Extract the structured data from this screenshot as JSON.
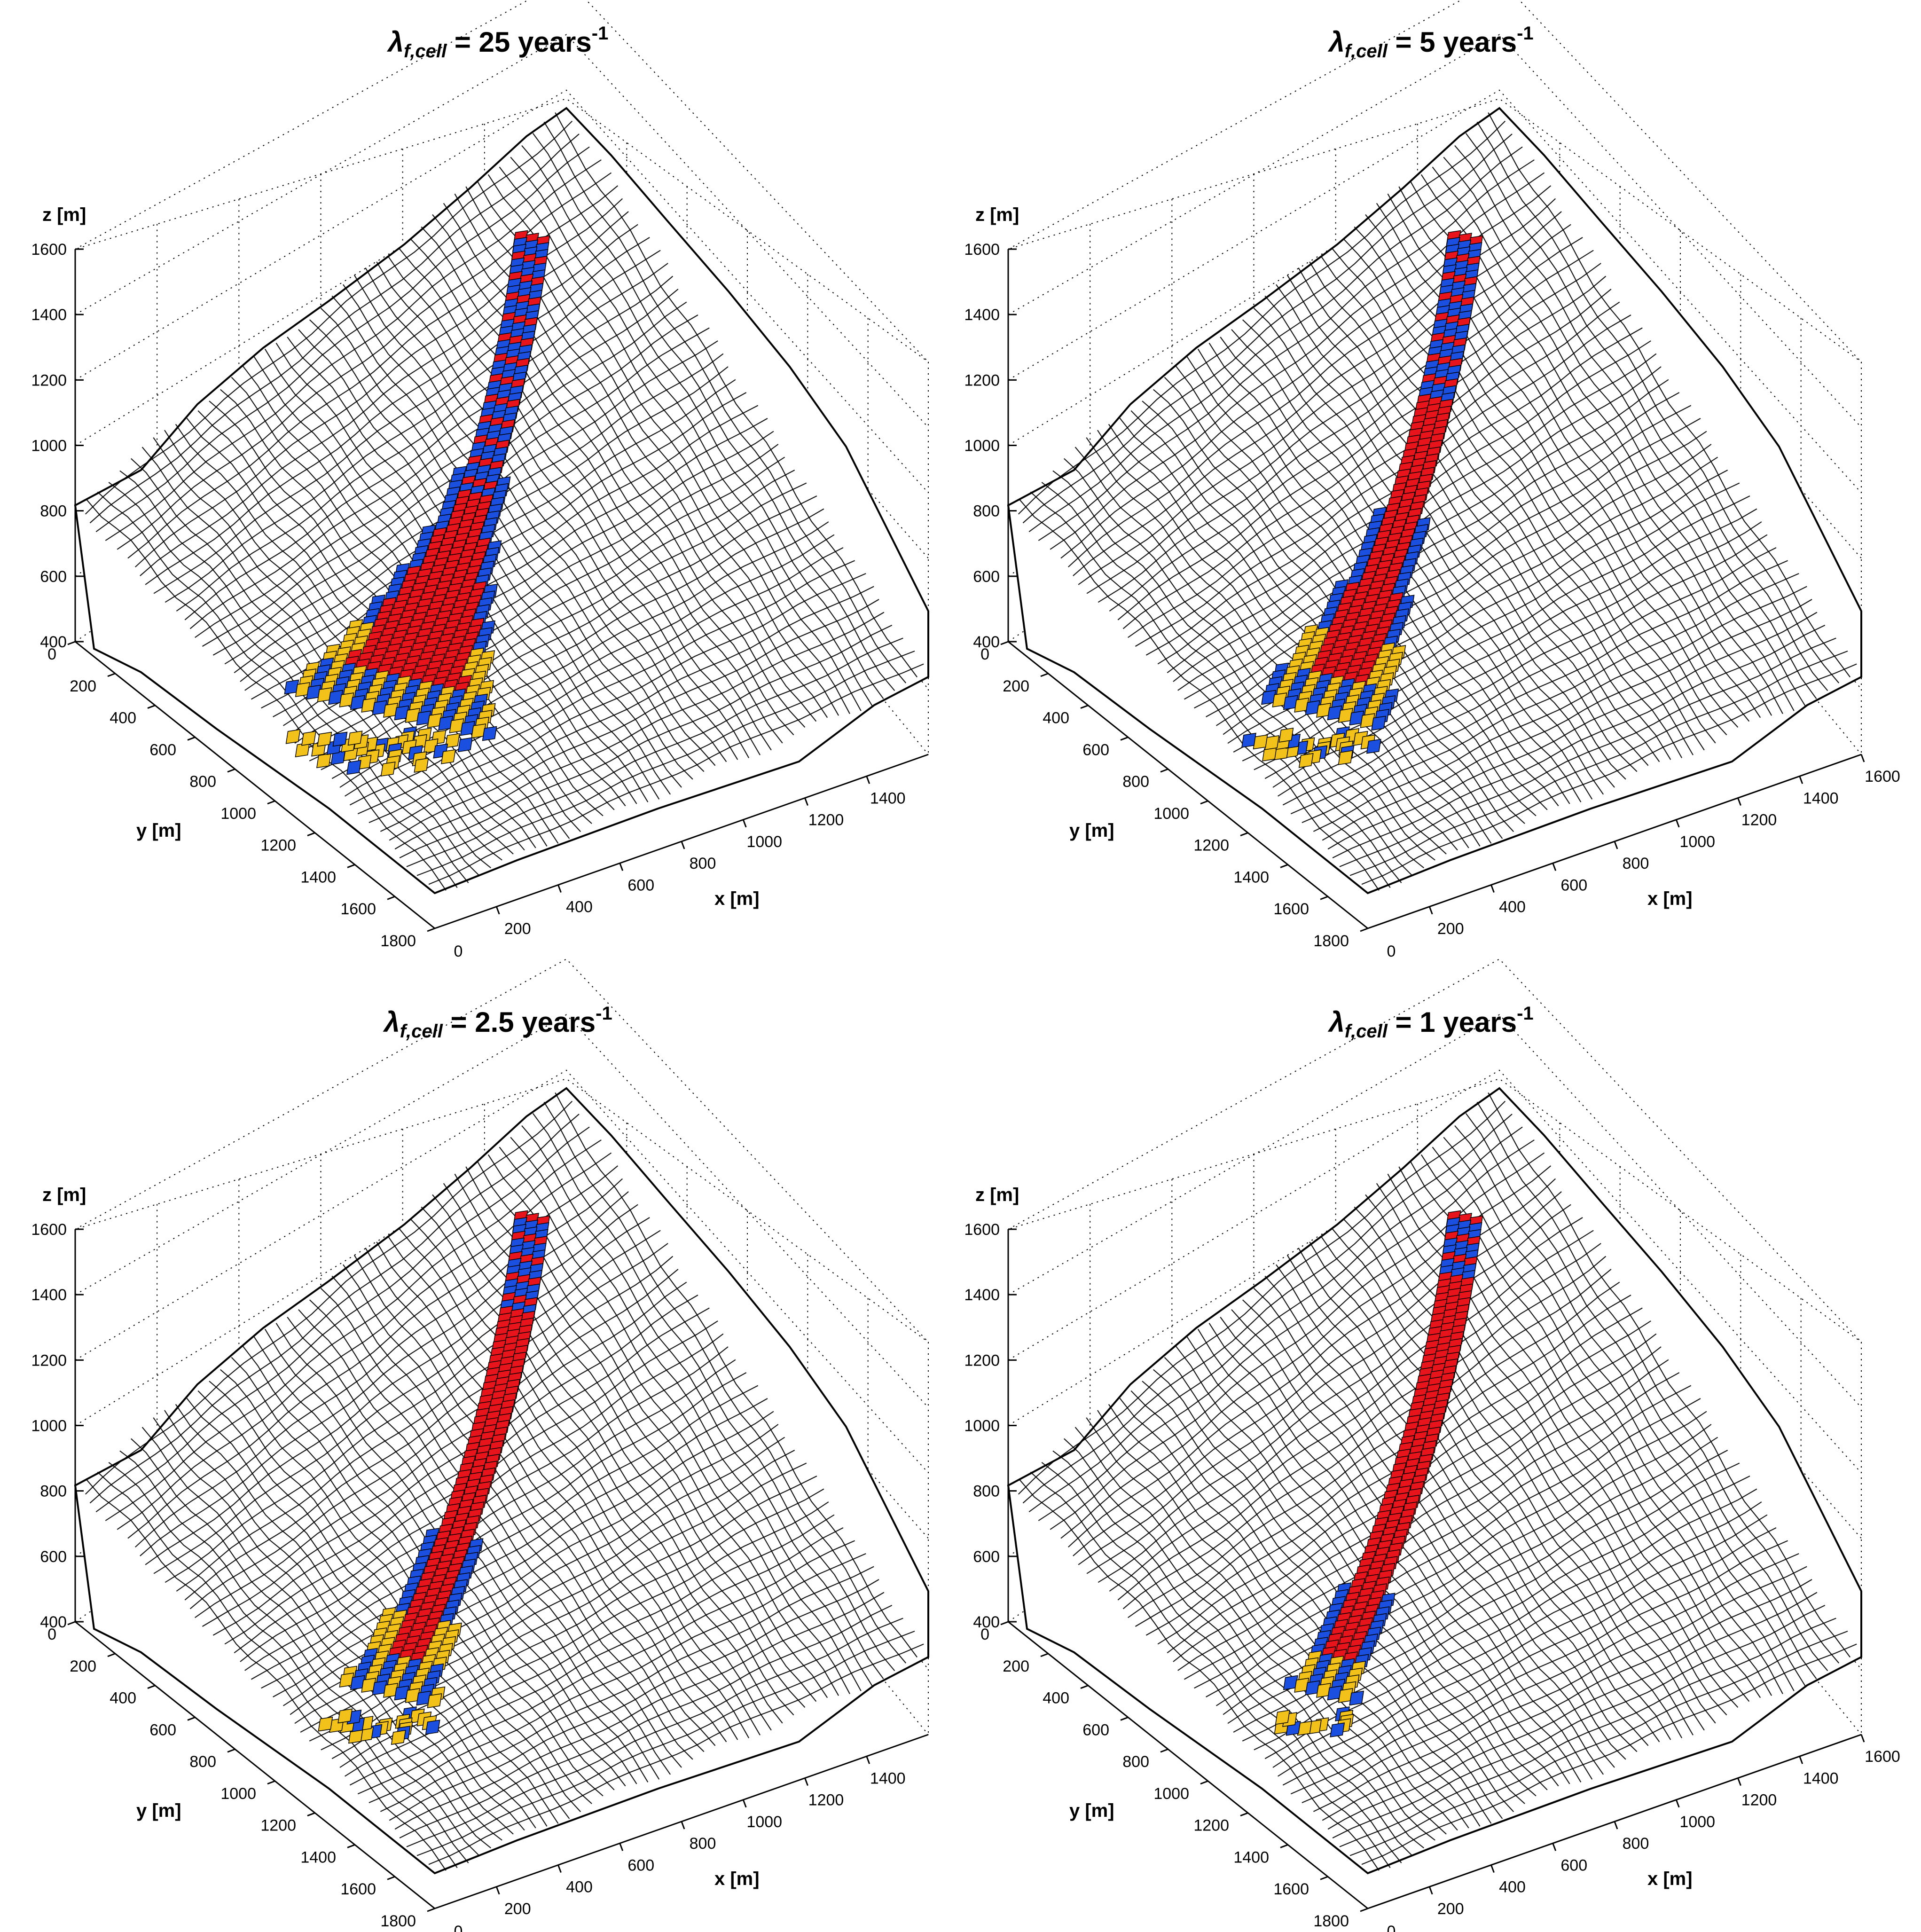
{
  "chart_data": [
    {
      "type": "surface3d",
      "title": {
        "prefix": "λ",
        "sub": "f,cell",
        "suffix": " = 25 years",
        "sup": "-1"
      },
      "xlabel": "x [m]",
      "ylabel": "y [m]",
      "zlabel": "z [m]",
      "xticks": [
        "200",
        "400",
        "600",
        "800",
        "1000",
        "1200",
        "1400"
      ],
      "yticks": [
        "0",
        "200",
        "400",
        "600",
        "800",
        "1000",
        "1200",
        "1400",
        "1600",
        "1800"
      ],
      "zticks": [
        "400",
        "600",
        "800",
        "1000",
        "1200",
        "1400",
        "1600"
      ],
      "xlim": [
        0,
        1600
      ],
      "ylim": [
        0,
        1800
      ],
      "zlim": [
        400,
        1600
      ],
      "origin_label": "0",
      "colors": {
        "red": "#e8141b",
        "blue": "#1a4fe0",
        "yellow": "#f2c21b"
      },
      "track_extent": 0.55,
      "widening": 1.0,
      "fan_extent": 1.0
    },
    {
      "type": "surface3d",
      "title": {
        "prefix": "λ",
        "sub": "f,cell",
        "suffix": " = 5 years",
        "sup": "-1"
      },
      "xlabel": "x [m]",
      "ylabel": "y [m]",
      "zlabel": "z [m]",
      "xticks": [
        "200",
        "400",
        "600",
        "800",
        "1000",
        "1200",
        "1400",
        "1600"
      ],
      "yticks": [
        "0",
        "200",
        "400",
        "600",
        "800",
        "1000",
        "1200",
        "1400",
        "1600",
        "1800"
      ],
      "zticks": [
        "400",
        "600",
        "800",
        "1000",
        "1200",
        "1400",
        "1600"
      ],
      "xlim": [
        0,
        1600
      ],
      "ylim": [
        0,
        1800
      ],
      "zlim": [
        400,
        1600
      ],
      "origin_label": "0",
      "colors": {
        "red": "#e8141b",
        "blue": "#1a4fe0",
        "yellow": "#f2c21b"
      },
      "track_extent": 0.35,
      "widening": 0.6,
      "fan_extent": 0.65
    },
    {
      "type": "surface3d",
      "title": {
        "prefix": "λ",
        "sub": "f,cell",
        "suffix": " = 2.5 years",
        "sup": "-1"
      },
      "xlabel": "x [m]",
      "ylabel": "y [m]",
      "zlabel": "z [m]",
      "xticks": [
        "200",
        "400",
        "600",
        "800",
        "1000",
        "1200",
        "1400"
      ],
      "yticks": [
        "0",
        "200",
        "400",
        "600",
        "800",
        "1000",
        "1200",
        "1400",
        "1600",
        "1800"
      ],
      "zticks": [
        "400",
        "600",
        "800",
        "1000",
        "1200",
        "1400",
        "1600"
      ],
      "xlim": [
        0,
        1600
      ],
      "ylim": [
        0,
        1800
      ],
      "zlim": [
        400,
        1600
      ],
      "origin_label": "0",
      "colors": {
        "red": "#e8141b",
        "blue": "#1a4fe0",
        "yellow": "#f2c21b"
      },
      "track_extent": 0.2,
      "widening": 0.4,
      "fan_extent": 0.55
    },
    {
      "type": "surface3d",
      "title": {
        "prefix": "λ",
        "sub": "f,cell",
        "suffix": " = 1 years",
        "sup": "-1"
      },
      "xlabel": "x [m]",
      "ylabel": "y [m]",
      "zlabel": "z [m]",
      "xticks": [
        "200",
        "400",
        "600",
        "800",
        "1000",
        "1200",
        "1400",
        "1600"
      ],
      "yticks": [
        "0",
        "200",
        "400",
        "600",
        "800",
        "1000",
        "1200",
        "1400",
        "1600",
        "1800"
      ],
      "zticks": [
        "400",
        "600",
        "800",
        "1000",
        "1200",
        "1400",
        "1600"
      ],
      "xlim": [
        0,
        1600
      ],
      "ylim": [
        0,
        1800
      ],
      "zlim": [
        400,
        1600
      ],
      "origin_label": "0",
      "colors": {
        "red": "#e8141b",
        "blue": "#1a4fe0",
        "yellow": "#f2c21b"
      },
      "track_extent": 0.12,
      "widening": 0.25,
      "fan_extent": 0.3
    }
  ]
}
